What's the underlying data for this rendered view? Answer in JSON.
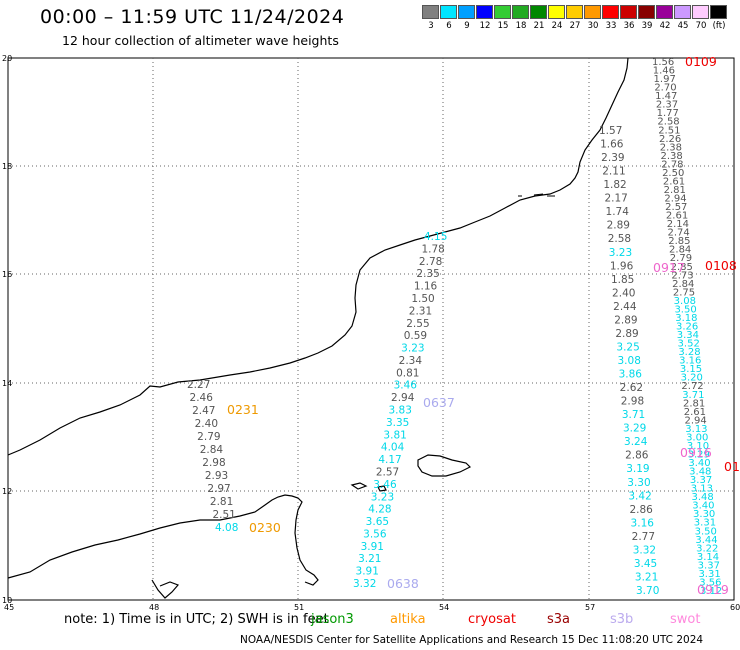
{
  "title": "00:00 – 11:59 UTC 11/24/2024",
  "subtitle": "12 hour collection of altimeter wave heights",
  "legend": {
    "colors": [
      "#808080",
      "#00e5ff",
      "#00a0ff",
      "#0000ff",
      "#33cc33",
      "#22aa22",
      "#008800",
      "#ffff00",
      "#ffcc00",
      "#ff9900",
      "#ff0000",
      "#cc0000",
      "#880000",
      "#990099",
      "#cc99ff",
      "#ffccff",
      "#000000"
    ],
    "labels": [
      "3",
      "6",
      "9",
      "12",
      "15",
      "18",
      "21",
      "24",
      "27",
      "30",
      "33",
      "36",
      "39",
      "42",
      "45",
      "70",
      "(ft)"
    ]
  },
  "axes": {
    "x_ticks": [
      "45",
      "48",
      "51",
      "54",
      "57",
      "60"
    ],
    "y_ticks": [
      "20",
      "18",
      "16",
      "14",
      "12",
      "10"
    ]
  },
  "passes": [
    {
      "label": "0109",
      "color": "#ee0000"
    },
    {
      "label": "0108",
      "color": "#ee0000"
    },
    {
      "label": "0917",
      "color": "#ee66cc"
    },
    {
      "label": "0916",
      "color": "#ee66cc"
    },
    {
      "label": "0919",
      "color": "#ee66cc"
    },
    {
      "label": "0231",
      "color": "#ee9900"
    },
    {
      "label": "0230",
      "color": "#ee9900"
    },
    {
      "label": "0637",
      "color": "#aaaaee"
    },
    {
      "label": "0638",
      "color": "#aaaaee"
    },
    {
      "label": "01",
      "color": "#ee0000"
    }
  ],
  "track_a_values": [
    "2.27",
    "2.46",
    "2.47",
    "2.40",
    "2.79",
    "2.84",
    "2.98",
    "2.93",
    "2.97",
    "2.81",
    "2.51",
    "4.08"
  ],
  "track_b_values": [
    "4.15",
    "1.78",
    "2.78",
    "2.35",
    "1.16",
    "1.50",
    "2.31",
    "2.55",
    "0.59",
    "3.23",
    "2.34",
    "0.81",
    "3.46",
    "2.94",
    "3.83",
    "3.35",
    "3.81",
    "4.04",
    "4.17",
    "2.57",
    "3.46",
    "3.23",
    "4.28",
    "3.65",
    "3.56",
    "3.91",
    "3.21",
    "3.91",
    "3.32"
  ],
  "track_c_values": [
    "1.57",
    "1.66",
    "2.39",
    "2.11",
    "1.82",
    "2.17",
    "1.74",
    "2.89",
    "2.58",
    "3.23",
    "1.96",
    "1.85",
    "2.40",
    "2.44",
    "2.89",
    "2.89",
    "3.25",
    "3.08",
    "3.86",
    "2.62",
    "2.98",
    "3.71",
    "3.29",
    "3.24",
    "2.86",
    "3.19",
    "3.30",
    "3.42",
    "2.86",
    "3.16",
    "2.77",
    "3.32",
    "3.45",
    "3.21",
    "3.70"
  ],
  "track_d_values": [
    "1.56",
    "1.46",
    "1.97",
    "2.70",
    "1.47",
    "2.37",
    "1.77",
    "2.58",
    "2.51",
    "2.26",
    "2.38",
    "2.38",
    "2.78",
    "2.50",
    "2.61",
    "2.81",
    "2.94",
    "2.57",
    "2.61",
    "2.14",
    "2.74",
    "2.85",
    "2.84",
    "2.79",
    "2.85",
    "2.73",
    "2.84",
    "2.75",
    "3.08",
    "3.50",
    "3.18",
    "3.26",
    "3.34",
    "3.52",
    "3.28",
    "3.16",
    "3.15",
    "3.20",
    "2.72",
    "3.71",
    "2.81",
    "2.61",
    "2.94",
    "3.13",
    "3.00",
    "3.10",
    "3.29",
    "3.40",
    "3.48",
    "3.37",
    "3.13",
    "3.48",
    "3.40",
    "3.30",
    "3.31",
    "3.50",
    "3.44",
    "3.22",
    "3.14",
    "3.37",
    "3.31",
    "3.56",
    "3.12"
  ],
  "note": "note:  1) Time is in UTC;  2) SWH is in feet",
  "satellites": [
    {
      "name": "jason3",
      "color": "#009900"
    },
    {
      "name": "altika",
      "color": "#ff9900"
    },
    {
      "name": "cryosat",
      "color": "#ee0000"
    },
    {
      "name": "s3a",
      "color": "#990000"
    },
    {
      "name": "s3b",
      "color": "#bbaaee"
    },
    {
      "name": "swot",
      "color": "#ff88dd"
    }
  ],
  "credit": "NOAA/NESDIS Center for Satellite Applications and Research    15 Dec 11:08:20 UTC 2024"
}
